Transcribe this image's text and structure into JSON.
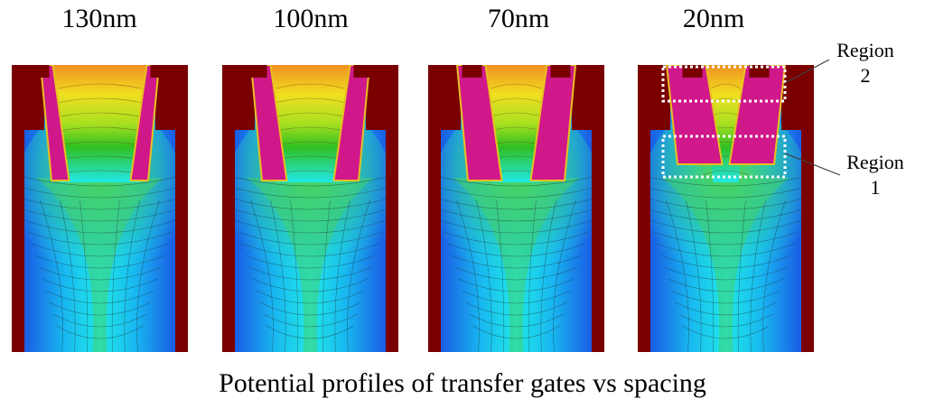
{
  "panels": [
    {
      "title": "130nm"
    },
    {
      "title": "100nm"
    },
    {
      "title": "70nm"
    },
    {
      "title": "20nm"
    }
  ],
  "annotations": {
    "region2": {
      "line1": "Region",
      "line2": "2"
    },
    "region1": {
      "line1": "Region",
      "line2": "1"
    }
  },
  "caption": "Potential profiles of transfer gates vs spacing",
  "colors": {
    "gate": "#d0188a",
    "oxide": "#7a0000",
    "blue": "#1a3fe0",
    "cyan": "#20e8e8",
    "green": "#30c020",
    "yellow": "#f0e020",
    "orange": "#f09020",
    "outline": "#e8c020"
  }
}
